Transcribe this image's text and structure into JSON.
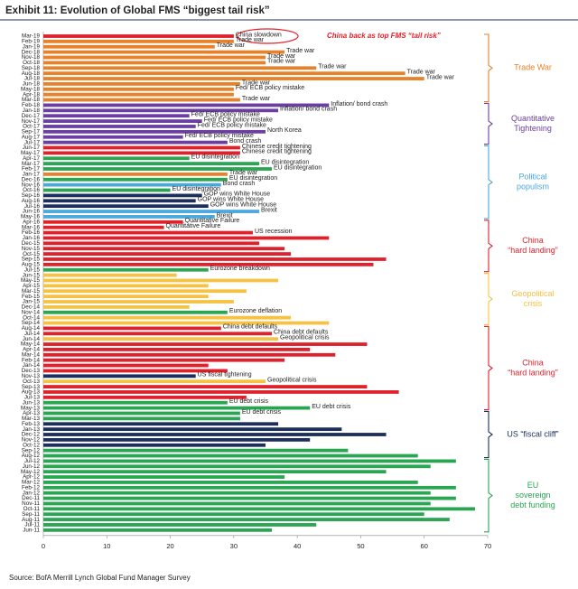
{
  "chart_data": {
    "type": "bar",
    "orientation": "horizontal",
    "title": "Exhibit 11: Evolution of Global FMS “biggest tail risk”",
    "annotation": "China back as top FMS “tail risk”",
    "source": "Source: BofA Merrill Lynch Global Fund Manager Survey",
    "xlim": [
      0,
      70
    ],
    "xticks": [
      0,
      10,
      20,
      30,
      40,
      50,
      60,
      70
    ],
    "categories": [
      "Mar-19",
      "Feb-19",
      "Jan-19",
      "Dec-18",
      "Nov-18",
      "Oct-18",
      "Sep-18",
      "Aug-18",
      "Jul-18",
      "Jun-18",
      "May-18",
      "Apr-18",
      "Mar-18",
      "Feb-18",
      "Jan-18",
      "Dec-17",
      "Nov-17",
      "Oct-17",
      "Sep-17",
      "Aug-17",
      "Jul-17",
      "Jun-17",
      "May-17",
      "Apr-17",
      "Mar-17",
      "Feb-17",
      "Jan-17",
      "Dec-16",
      "Nov-16",
      "Oct-16",
      "Sep-16",
      "Aug-16",
      "Jul-16",
      "Jun-16",
      "May-16",
      "Apr-16",
      "Mar-16",
      "Feb-16",
      "Jan-16",
      "Dec-15",
      "Nov-15",
      "Oct-15",
      "Sep-15",
      "Aug-15",
      "Jul-15",
      "Jun-15",
      "May-15",
      "Apr-15",
      "Mar-15",
      "Feb-15",
      "Jan-15",
      "Dec-14",
      "Nov-14",
      "Oct-14",
      "Sep-14",
      "Aug-14",
      "Jul-14",
      "Jun-14",
      "May-14",
      "Apr-14",
      "Mar-14",
      "Feb-14",
      "Jan-14",
      "Dec-13",
      "Nov-13",
      "Oct-13",
      "Sep-13",
      "Aug-13",
      "Jul-13",
      "Jun-13",
      "May-13",
      "Apr-13",
      "Mar-13",
      "Feb-13",
      "Jan-13",
      "Dec-12",
      "Nov-12",
      "Oct-12",
      "Sep-12",
      "Aug-12",
      "Jul-12",
      "Jun-12",
      "May-12",
      "Apr-12",
      "Mar-12",
      "Feb-12",
      "Jan-12",
      "Dec-11",
      "Nov-11",
      "Oct-11",
      "Sep-11",
      "Aug-11",
      "Jul-11",
      "Jun-11"
    ],
    "values": [
      30,
      30,
      27,
      38,
      35,
      35,
      43,
      57,
      60,
      31,
      30,
      30,
      31,
      45,
      37,
      23,
      25,
      24,
      35,
      22,
      29,
      31,
      31,
      23,
      34,
      36,
      29,
      29,
      28,
      20,
      25,
      24,
      26,
      34,
      27,
      22,
      19,
      33,
      45,
      34,
      38,
      39,
      54,
      52,
      26,
      21,
      37,
      26,
      32,
      26,
      30,
      23,
      29,
      39,
      45,
      28,
      36,
      37,
      51,
      42,
      46,
      38,
      26,
      29,
      24,
      35,
      51,
      56,
      32,
      29,
      42,
      31,
      31,
      37,
      47,
      54,
      42,
      35,
      48,
      59,
      65,
      61,
      54,
      38,
      59,
      65,
      61,
      65,
      61,
      68,
      60,
      64,
      43,
      36
    ],
    "bar_labels": [
      "China slowdown",
      "Trade war",
      "Trade war",
      "Trade war",
      "Trade war",
      "Trade war",
      "Trade war",
      "Trade war",
      "Trade war",
      "Trade war",
      "Fed/ ECB policy mistake",
      null,
      "Trade war",
      "Inflation/ bond crash",
      "Inflation/ bond crash",
      "Fed/ ECB policy mistake",
      "Fed/ ECB policy mistake",
      "Fed/ ECB policy mistake",
      "North Korea",
      "Fed/ ECB policy mistake",
      "Bond crash",
      "Chinese credit tightening",
      "Chinese credit tightening",
      "EU disintegration",
      "EU disintegration",
      "EU disintegration",
      "Trade war",
      "EU disintegration",
      "Bond crash",
      "EU disintegration",
      "GOP wins White House",
      "GOP wins White House",
      "GOP wins White House",
      "Brexit",
      "Brexit",
      "Quantitative Failure",
      "Quantitative Failure",
      "US recession",
      null,
      null,
      null,
      null,
      null,
      null,
      "Eurozone breakdown",
      null,
      null,
      null,
      null,
      null,
      null,
      null,
      "Eurozone deflation",
      null,
      null,
      "China debt defaults",
      "China debt defaults",
      "Geopolitical crisis",
      null,
      null,
      null,
      null,
      null,
      null,
      "US fiscal tightening",
      "Geopolitical crisis",
      null,
      null,
      null,
      "EU debt crisis",
      "EU debt crisis",
      "EU debt crisis",
      null,
      null,
      null,
      null,
      null,
      null,
      null,
      null,
      null,
      null,
      null,
      null,
      null,
      null,
      null,
      null,
      null,
      null,
      null,
      null,
      null,
      null
    ],
    "colors": [
      "#e0202a",
      "#e8822a",
      "#e8822a",
      "#e8822a",
      "#e8822a",
      "#e8822a",
      "#e8822a",
      "#e8822a",
      "#e8822a",
      "#e8822a",
      "#e8822a",
      "#e8822a",
      "#e8822a",
      "#6b3fa0",
      "#6b3fa0",
      "#6b3fa0",
      "#6b3fa0",
      "#6b3fa0",
      "#6b3fa0",
      "#6b3fa0",
      "#6b3fa0",
      "#e0202a",
      "#e0202a",
      "#2aa552",
      "#2aa552",
      "#2aa552",
      "#e8822a",
      "#2aa552",
      "#4aa8dc",
      "#2aa552",
      "#1c2e5c",
      "#1c2e5c",
      "#1c2e5c",
      "#4aa8dc",
      "#4aa8dc",
      "#e0202a",
      "#e0202a",
      "#e0202a",
      "#e0202a",
      "#e0202a",
      "#e0202a",
      "#e0202a",
      "#e0202a",
      "#e0202a",
      "#2aa552",
      "#f6c244",
      "#f6c244",
      "#f6c244",
      "#f6c244",
      "#f6c244",
      "#f6c244",
      "#f6c244",
      "#2aa552",
      "#f6c244",
      "#f6c244",
      "#e0202a",
      "#e0202a",
      "#f6c244",
      "#e0202a",
      "#e0202a",
      "#e0202a",
      "#e0202a",
      "#e0202a",
      "#e0202a",
      "#1c2e5c",
      "#f6c244",
      "#e0202a",
      "#e0202a",
      "#e0202a",
      "#2aa552",
      "#2aa552",
      "#2aa552",
      "#2aa552",
      "#1c2e5c",
      "#1c2e5c",
      "#1c2e5c",
      "#1c2e5c",
      "#1c2e5c",
      "#2aa552",
      "#2aa552",
      "#2aa552",
      "#2aa552",
      "#2aa552",
      "#2aa552",
      "#2aa552",
      "#2aa552",
      "#2aa552",
      "#2aa552",
      "#2aa552",
      "#2aa552",
      "#2aa552",
      "#2aa552",
      "#2aa552",
      "#2aa552"
    ],
    "groups": [
      {
        "label": [
          "Trade War"
        ],
        "color": "#e8822a"
      },
      {
        "label": [
          "Quantitative",
          "Tightening"
        ],
        "color": "#6b3fa0"
      },
      {
        "label": [
          "Political",
          "populism"
        ],
        "color": "#4aa8dc"
      },
      {
        "label": [
          "China",
          "“hard landing”"
        ],
        "color": "#e0202a"
      },
      {
        "label": [
          "Geopolitical",
          "crisis"
        ],
        "color": "#f6c244"
      },
      {
        "label": [
          "China",
          "“hard landing”"
        ],
        "color": "#e0202a"
      },
      {
        "label": [
          "US “fiscal cliff”"
        ],
        "color": "#1c2e5c"
      },
      {
        "label": [
          "EU",
          "sovereign",
          "debt funding"
        ],
        "color": "#2aa552"
      }
    ]
  }
}
